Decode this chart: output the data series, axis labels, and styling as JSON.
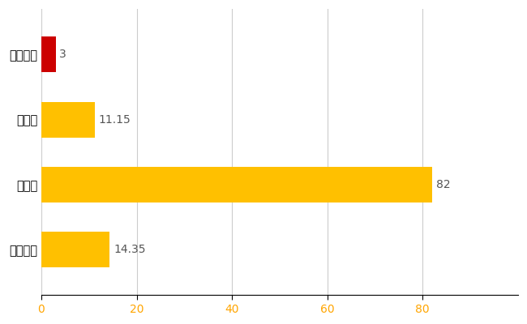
{
  "categories": [
    "全国平均",
    "県最大",
    "県平均",
    "田舎館村"
  ],
  "values": [
    14.35,
    82,
    11.15,
    3
  ],
  "bar_colors": [
    "#FFC000",
    "#FFC000",
    "#FFC000",
    "#CC0000"
  ],
  "value_labels": [
    "14.35",
    "82",
    "11.15",
    "3"
  ],
  "xlim": [
    0,
    100
  ],
  "xticks": [
    0,
    20,
    40,
    60,
    80
  ],
  "grid_color": "#CCCCCC",
  "background_color": "#FFFFFF",
  "bar_height": 0.55,
  "label_fontsize": 10.5,
  "tick_fontsize": 10,
  "value_label_fontsize": 10,
  "value_label_color": "#555555",
  "tick_label_color": "#FFA500"
}
